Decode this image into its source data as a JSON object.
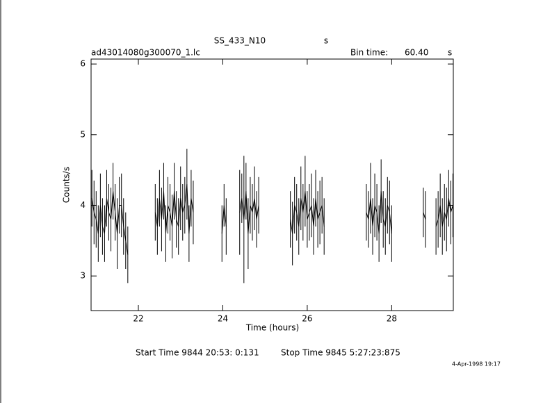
{
  "chart_data": {
    "type": "lightcurve",
    "title": "SS_433_N10",
    "title_unit": "s",
    "file_name": "ad43014080g300070_1.lc",
    "bin_time_label": "Bin time:",
    "bin_time": "60.40",
    "bin_time_unit": "s",
    "xlabel": "Time (hours)",
    "ylabel": "Counts/s",
    "start_time": "Start Time  9844 20:53: 0:131",
    "stop_time": "Stop Time  9845  5:27:23:875",
    "timestamp": "4-Apr-1998 19:17",
    "xlim": [
      20.88,
      29.46
    ],
    "ylim": [
      2.51,
      6.07
    ],
    "xticks": [
      22,
      24,
      26,
      28
    ],
    "yticks": [
      3,
      4,
      5,
      6
    ],
    "color": "#000000",
    "segments": [
      {
        "x": [
          20.9,
          20.95,
          21.0,
          21.05,
          21.1,
          21.15,
          21.2,
          21.25,
          21.3,
          21.35,
          21.4,
          21.45,
          21.5,
          21.55,
          21.6,
          21.65,
          21.7,
          21.75
        ],
        "values": [
          4.1,
          3.9,
          3.8,
          3.6,
          4.0,
          3.7,
          3.6,
          4.1,
          3.9,
          3.8,
          4.2,
          3.9,
          3.6,
          4.0,
          4.0,
          3.7,
          3.5,
          3.3
        ],
        "errors": [
          0.4,
          0.45,
          0.4,
          0.4,
          0.45,
          0.4,
          0.4,
          0.4,
          0.4,
          0.45,
          0.4,
          0.4,
          0.5,
          0.4,
          0.45,
          0.4,
          0.4,
          0.4
        ]
      },
      {
        "x": [
          22.4,
          22.45,
          22.5,
          22.55,
          22.6,
          22.65,
          22.7,
          22.75,
          22.8,
          22.85,
          22.9,
          22.95,
          23.0,
          23.05,
          23.1,
          23.15,
          23.2,
          23.25,
          23.3
        ],
        "values": [
          3.9,
          3.7,
          4.1,
          3.8,
          4.2,
          3.6,
          4.0,
          3.9,
          3.7,
          4.2,
          3.8,
          3.7,
          4.1,
          3.9,
          4.0,
          4.3,
          3.6,
          4.1,
          3.9
        ],
        "errors": [
          0.4,
          0.4,
          0.4,
          0.45,
          0.4,
          0.4,
          0.4,
          0.4,
          0.45,
          0.4,
          0.4,
          0.4,
          0.45,
          0.4,
          0.4,
          0.5,
          0.4,
          0.4,
          0.45
        ]
      },
      {
        "x": [
          23.98,
          24.03,
          24.08
        ],
        "values": [
          3.6,
          4.0,
          3.7
        ],
        "errors": [
          0.4,
          0.3,
          0.4
        ]
      },
      {
        "x": [
          24.4,
          24.45,
          24.5,
          24.55,
          24.6,
          24.65,
          24.7,
          24.75,
          24.8,
          24.85
        ],
        "values": [
          3.9,
          4.1,
          3.8,
          4.2,
          3.6,
          4.0,
          3.9,
          4.1,
          3.8,
          4.0
        ],
        "errors": [
          0.6,
          0.35,
          0.9,
          0.4,
          0.5,
          0.4,
          0.4,
          0.45,
          0.4,
          0.4
        ]
      },
      {
        "x": [
          25.6,
          25.65,
          25.7,
          25.75,
          25.8,
          25.85,
          25.9,
          25.95,
          26.0,
          26.05,
          26.1,
          26.15,
          26.2,
          26.25,
          26.3,
          26.35,
          26.4
        ],
        "values": [
          3.8,
          3.6,
          4.0,
          3.9,
          3.7,
          4.1,
          3.9,
          4.2,
          3.8,
          3.9,
          4.0,
          3.7,
          4.1,
          3.8,
          3.9,
          4.0,
          3.7
        ],
        "errors": [
          0.4,
          0.45,
          0.4,
          0.4,
          0.4,
          0.45,
          0.4,
          0.5,
          0.4,
          0.4,
          0.45,
          0.4,
          0.4,
          0.4,
          0.45,
          0.4,
          0.4
        ]
      },
      {
        "x": [
          27.4,
          27.45,
          27.5,
          27.55,
          27.6,
          27.65,
          27.7,
          27.75,
          27.8,
          27.85,
          27.9,
          27.95,
          28.0
        ],
        "values": [
          3.9,
          3.8,
          4.1,
          3.7,
          4.0,
          3.9,
          3.6,
          4.2,
          3.8,
          3.7,
          4.0,
          3.9,
          3.6
        ],
        "errors": [
          0.4,
          0.4,
          0.5,
          0.4,
          0.45,
          0.4,
          0.4,
          0.45,
          0.4,
          0.4,
          0.4,
          0.45,
          0.4
        ]
      },
      {
        "x": [
          28.75,
          28.8
        ],
        "values": [
          3.9,
          3.8
        ],
        "errors": [
          0.35,
          0.4
        ]
      },
      {
        "x": [
          29.05,
          29.1,
          29.15,
          29.2,
          29.25,
          29.3,
          29.35,
          29.4,
          29.45
        ],
        "values": [
          3.7,
          3.8,
          4.0,
          3.7,
          3.9,
          3.8,
          4.1,
          3.9,
          4.0
        ],
        "errors": [
          0.4,
          0.4,
          0.45,
          0.4,
          0.4,
          0.45,
          0.4,
          0.45,
          0.45
        ]
      }
    ]
  }
}
